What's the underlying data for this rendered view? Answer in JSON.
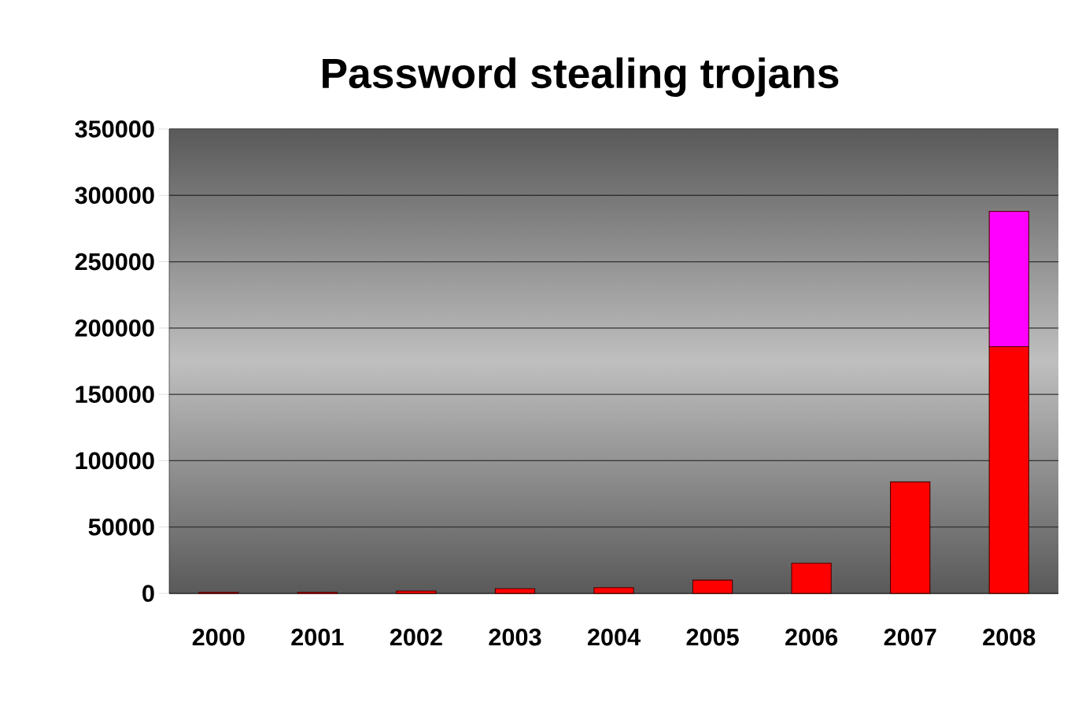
{
  "chart_data": {
    "type": "bar",
    "title": "Password stealing trojans",
    "stacked": true,
    "categories": [
      "2000",
      "2001",
      "2002",
      "2003",
      "2004",
      "2005",
      "2006",
      "2007",
      "2008"
    ],
    "series": [
      {
        "color": "#ff0000",
        "values": [
          700,
          900,
          1800,
          3500,
          4300,
          10000,
          22700,
          84000,
          186000
        ]
      },
      {
        "color": "#ff00ff",
        "values": [
          null,
          null,
          null,
          null,
          null,
          null,
          null,
          null,
          102000
        ]
      }
    ],
    "ylim": [
      0,
      350000
    ],
    "yticks": [
      0,
      50000,
      100000,
      150000,
      200000,
      250000,
      300000,
      350000
    ],
    "grid": "y"
  }
}
